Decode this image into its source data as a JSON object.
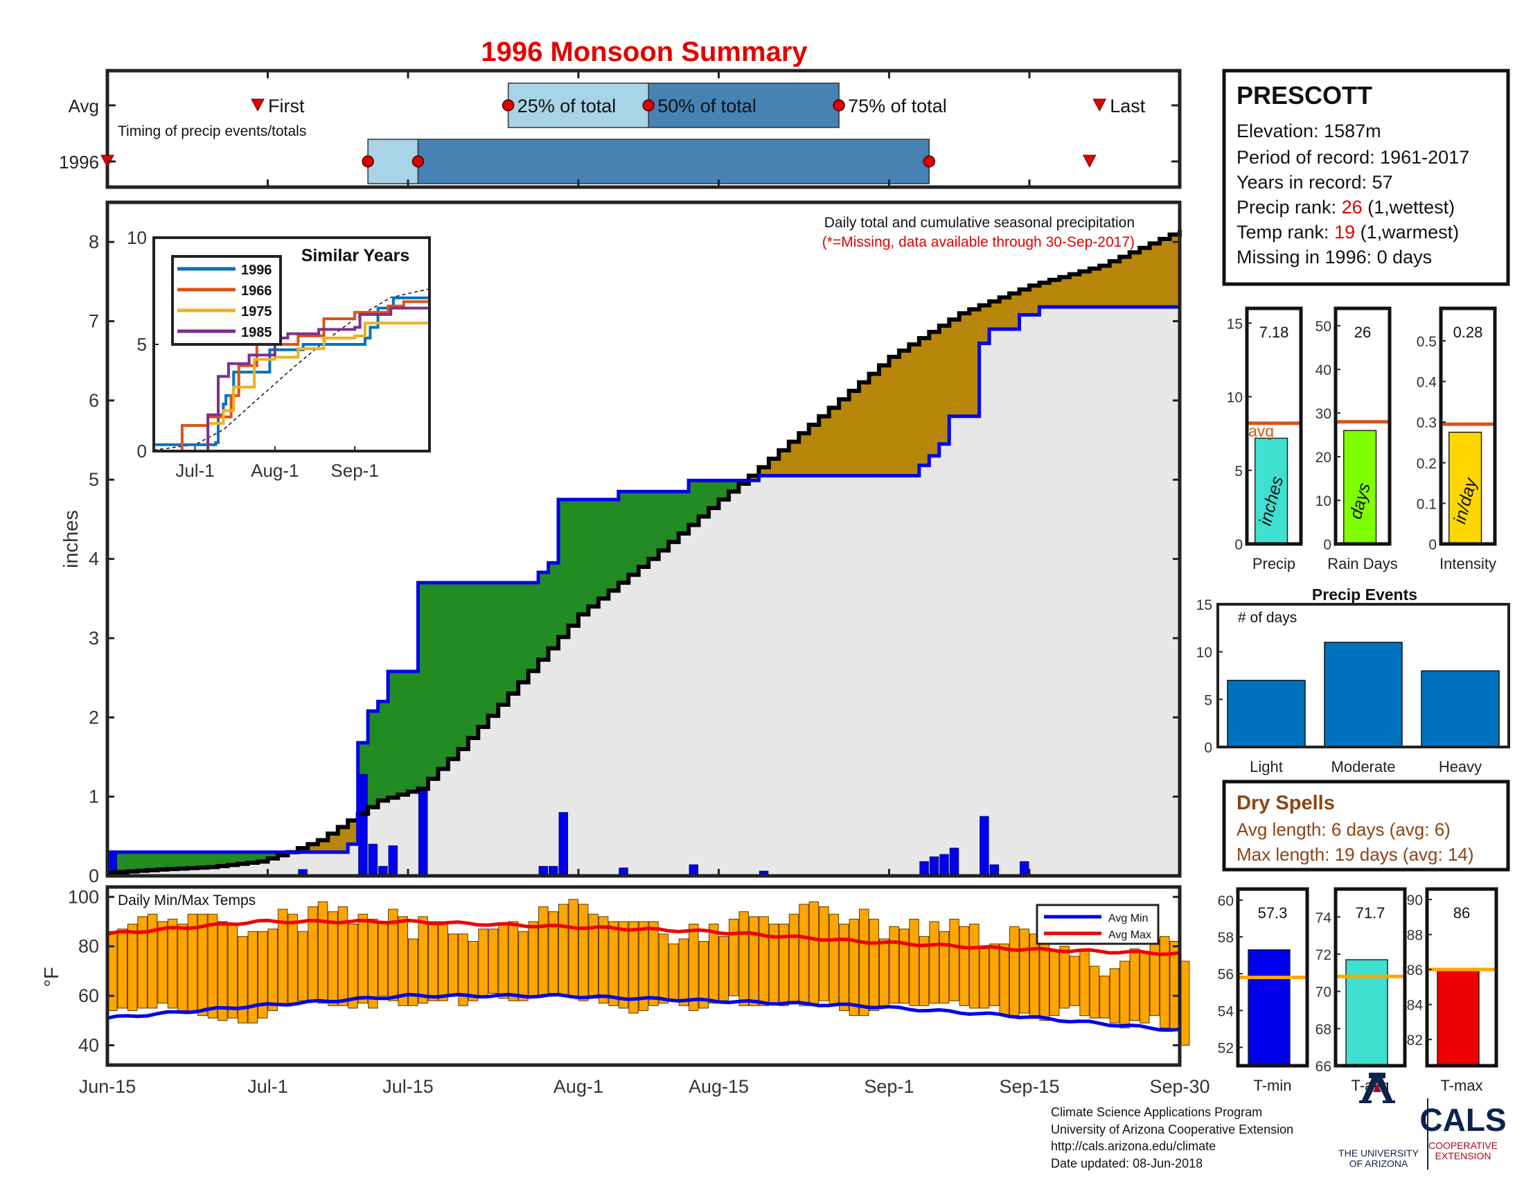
{
  "title": "1996 Monsoon Summary",
  "timing": {
    "avg_label": "Avg",
    "year_label": "1996",
    "subtitle": "Timing of precip events/totals",
    "first_label": "First",
    "p25_label": "25% of total",
    "p50_label": "50% of total",
    "p75_label": "75% of total",
    "last_label": "Last",
    "avg": {
      "first": "Jun-30",
      "p25": "Jul-25",
      "p50": "Aug-8",
      "p75": "Aug-27",
      "last": "Sep-22"
    },
    "year": {
      "first": "Jun-15",
      "p25": "Jul-11",
      "p50": "Jul-16",
      "p75": "Sep-5",
      "last": "Sep-21"
    },
    "colors": {
      "light": "#a9d3e6",
      "dark": "#4682b4",
      "marker": "#e00000"
    }
  },
  "station": {
    "name": "PRESCOTT",
    "elevation": "Elevation: 1587m",
    "period": "Period of record: 1961-2017",
    "years": "Years in record: 57",
    "precip_rank_prefix": "Precip rank: ",
    "precip_rank": "26",
    "precip_rank_suffix": " (1,wettest)",
    "temp_rank_prefix": "Temp rank: ",
    "temp_rank": "19",
    "temp_rank_suffix": " (1,warmest)",
    "missing": "Missing in 1996: 0 days"
  },
  "main_chart": {
    "note": "Daily total and cumulative seasonal precipitation",
    "missing_note": "(*=Missing, data available through 30-Sep-2017)",
    "ylabel": "inches",
    "ylim": [
      0,
      8.5
    ],
    "yticks": [
      0,
      1,
      2,
      3,
      4,
      5,
      6,
      7,
      8
    ],
    "xticks": [
      "Jun-15",
      "Jul-1",
      "Jul-15",
      "Aug-1",
      "Aug-15",
      "Sep-1",
      "Sep-15",
      "Sep-30"
    ],
    "colors": {
      "above": "#228b22",
      "below": "#b8860b",
      "fill": "#e8e7e7",
      "observed": "#0000ee",
      "average": "#000000",
      "daily": "#0000ee"
    },
    "observed_cumulative": [
      [
        "Jun-15",
        0.3
      ],
      [
        "Jul-9",
        0.4
      ],
      [
        "Jul-10",
        1.68
      ],
      [
        "Jul-11",
        2.08
      ],
      [
        "Jul-12",
        2.2
      ],
      [
        "Jul-13",
        2.58
      ],
      [
        "Jul-16",
        3.7
      ],
      [
        "Jul-28",
        3.83
      ],
      [
        "Jul-29",
        3.95
      ],
      [
        "Jul-30",
        4.75
      ],
      [
        "Aug-5",
        4.85
      ],
      [
        "Aug-12",
        4.99
      ],
      [
        "Aug-19",
        5.05
      ],
      [
        "Sep-4",
        5.18
      ],
      [
        "Sep-5",
        5.3
      ],
      [
        "Sep-6",
        5.45
      ],
      [
        "Sep-7",
        5.8
      ],
      [
        "Sep-10",
        6.72
      ],
      [
        "Sep-11",
        6.9
      ],
      [
        "Sep-14",
        7.08
      ],
      [
        "Sep-16",
        7.18
      ],
      [
        "Sep-30",
        7.18
      ]
    ],
    "average_cumulative": [
      [
        "Jun-15",
        0.04
      ],
      [
        "Jun-20",
        0.08
      ],
      [
        "Jun-25",
        0.11
      ],
      [
        "Jun-30",
        0.18
      ],
      [
        "Jul-3",
        0.3
      ],
      [
        "Jul-6",
        0.45
      ],
      [
        "Jul-9",
        0.7
      ],
      [
        "Jul-12",
        0.95
      ],
      [
        "Jul-16",
        1.1
      ],
      [
        "Jul-20",
        1.6
      ],
      [
        "Jul-25",
        2.3
      ],
      [
        "Aug-1",
        3.3
      ],
      [
        "Aug-8",
        4.0
      ],
      [
        "Aug-15",
        4.75
      ],
      [
        "Aug-18",
        5.05
      ],
      [
        "Aug-25",
        5.8
      ],
      [
        "Sep-1",
        6.55
      ],
      [
        "Sep-8",
        7.1
      ],
      [
        "Sep-15",
        7.45
      ],
      [
        "Sep-22",
        7.7
      ],
      [
        "Sep-30",
        8.15
      ]
    ],
    "daily_precip": [
      [
        "Jun-15",
        0.28
      ],
      [
        "Jul-4",
        0.08
      ],
      [
        "Jul-10",
        1.28
      ],
      [
        "Jul-11",
        0.4
      ],
      [
        "Jul-12",
        0.12
      ],
      [
        "Jul-13",
        0.38
      ],
      [
        "Jul-16",
        1.12
      ],
      [
        "Jul-28",
        0.12
      ],
      [
        "Jul-29",
        0.12
      ],
      [
        "Jul-30",
        0.8
      ],
      [
        "Aug-5",
        0.1
      ],
      [
        "Aug-12",
        0.14
      ],
      [
        "Aug-19",
        0.06
      ],
      [
        "Sep-4",
        0.18
      ],
      [
        "Sep-5",
        0.24
      ],
      [
        "Sep-6",
        0.27
      ],
      [
        "Sep-7",
        0.35
      ],
      [
        "Sep-10",
        0.75
      ],
      [
        "Sep-11",
        0.14
      ],
      [
        "Sep-14",
        0.18
      ]
    ]
  },
  "similar_years": {
    "title": "Similar Years",
    "ylim": [
      0,
      10
    ],
    "yticks": [
      0,
      5,
      10
    ],
    "xticks": [
      "Jul-1",
      "Aug-1",
      "Sep-1"
    ],
    "series": [
      {
        "name": "1996",
        "color": "#0072bd",
        "points": [
          [
            "Jun-15",
            0.3
          ],
          [
            "Jul-9",
            0.4
          ],
          [
            "Jul-10",
            1.7
          ],
          [
            "Jul-12",
            2.2
          ],
          [
            "Jul-13",
            2.6
          ],
          [
            "Jul-16",
            3.7
          ],
          [
            "Jul-30",
            4.75
          ],
          [
            "Aug-12",
            5.0
          ],
          [
            "Sep-5",
            5.3
          ],
          [
            "Sep-7",
            5.8
          ],
          [
            "Sep-10",
            6.7
          ],
          [
            "Sep-16",
            7.18
          ],
          [
            "Sep-30",
            7.18
          ]
        ]
      },
      {
        "name": "1966",
        "color": "#d95319",
        "points": [
          [
            "Jun-15",
            0.0
          ],
          [
            "Jun-25",
            0.0
          ],
          [
            "Jun-26",
            1.2
          ],
          [
            "Jul-5",
            1.2
          ],
          [
            "Jul-6",
            1.6
          ],
          [
            "Jul-15",
            2.6
          ],
          [
            "Jul-18",
            4.0
          ],
          [
            "Jul-25",
            5.0
          ],
          [
            "Aug-10",
            5.4
          ],
          [
            "Aug-20",
            6.2
          ],
          [
            "Sep-1",
            6.5
          ],
          [
            "Sep-10",
            6.5
          ],
          [
            "Sep-14",
            6.8
          ],
          [
            "Sep-20",
            7.0
          ],
          [
            "Sep-30",
            7.2
          ]
        ]
      },
      {
        "name": "1975",
        "color": "#edb120",
        "points": [
          [
            "Jun-15",
            0.0
          ],
          [
            "Jul-5",
            0.0
          ],
          [
            "Jul-6",
            1.3
          ],
          [
            "Jul-12",
            1.9
          ],
          [
            "Jul-16",
            3.0
          ],
          [
            "Jul-24",
            4.3
          ],
          [
            "Aug-1",
            4.4
          ],
          [
            "Aug-10",
            4.8
          ],
          [
            "Aug-20",
            5.3
          ],
          [
            "Sep-1",
            5.4
          ],
          [
            "Sep-5",
            6.0
          ],
          [
            "Sep-30",
            6.0
          ]
        ]
      },
      {
        "name": "1985",
        "color": "#7e2f8e",
        "points": [
          [
            "Jun-15",
            0.0
          ],
          [
            "Jul-5",
            0.0
          ],
          [
            "Jul-6",
            1.7
          ],
          [
            "Jul-10",
            3.5
          ],
          [
            "Jul-14",
            4.1
          ],
          [
            "Jul-22",
            4.5
          ],
          [
            "Aug-1",
            5.3
          ],
          [
            "Aug-6",
            5.5
          ],
          [
            "Aug-18",
            5.7
          ],
          [
            "Sep-1",
            5.8
          ],
          [
            "Sep-3",
            6.4
          ],
          [
            "Sep-15",
            6.7
          ],
          [
            "Sep-30",
            7.1
          ]
        ]
      }
    ],
    "average_points": [
      [
        "Jun-15",
        0.05
      ],
      [
        "Jul-1",
        0.3
      ],
      [
        "Jul-12",
        1.0
      ],
      [
        "Jul-25",
        2.4
      ],
      [
        "Aug-8",
        3.9
      ],
      [
        "Aug-20",
        5.1
      ],
      [
        "Sep-1",
        6.2
      ],
      [
        "Sep-15",
        7.2
      ],
      [
        "Sep-30",
        7.6
      ]
    ]
  },
  "bar_panels": [
    {
      "value": 7.18,
      "value_label": "7.18",
      "avg": 8.2,
      "avg_label": "avg",
      "ylim": [
        0,
        16
      ],
      "yticks": [
        0,
        5,
        10,
        15
      ],
      "color": "#40e0d0",
      "unit": "inches",
      "xlabel": "Precip"
    },
    {
      "value": 26,
      "value_label": "26",
      "avg": 28,
      "avg_label": "",
      "ylim": [
        0,
        54
      ],
      "yticks": [
        0,
        10,
        20,
        30,
        40,
        50
      ],
      "color": "#7fff00",
      "unit": "days",
      "xlabel": "Rain Days"
    },
    {
      "value": 0.275,
      "value_label": "0.28",
      "avg": 0.295,
      "avg_label": "",
      "ylim": [
        0,
        0.58
      ],
      "yticks": [
        0.1,
        0.2,
        0.3,
        0.4,
        0.5
      ],
      "ytick_labels": [
        "0.1",
        "0.2",
        "0.3",
        "0.4",
        "0.5"
      ],
      "zero_label": "0",
      "color": "#ffd700",
      "unit": "in/day",
      "xlabel": "Intensity"
    }
  ],
  "precip_events": {
    "title": "Precip Events",
    "ylabel": "# of days",
    "ylim": [
      0,
      15
    ],
    "yticks": [
      0,
      5,
      10,
      15
    ],
    "categories": [
      "Light",
      "Moderate",
      "Heavy"
    ],
    "values": [
      7,
      11,
      8
    ],
    "color": "#0072bd"
  },
  "dry_spells": {
    "title": "Dry Spells",
    "avg_length": "Avg length: 6 days (avg: 6)",
    "max_length": "Max length: 19 days (avg: 14)",
    "color": "#8b4513"
  },
  "temps": {
    "label": "Daily Min/Max Temps",
    "ylabel": "°F",
    "ylim": [
      32,
      104
    ],
    "yticks": [
      40,
      60,
      80,
      100
    ],
    "bar_color": "#ffa500",
    "legend_min": "Avg Min",
    "legend_max": "Avg Max",
    "min_color": "#0000ee",
    "max_color": "#ee0000",
    "avg_max": [
      [
        0,
        85
      ],
      [
        15,
        90
      ],
      [
        30,
        90
      ],
      [
        45,
        88
      ],
      [
        60,
        86
      ],
      [
        75,
        82
      ],
      [
        90,
        79
      ],
      [
        107,
        77
      ]
    ],
    "avg_min": [
      [
        0,
        51
      ],
      [
        15,
        56
      ],
      [
        30,
        60
      ],
      [
        45,
        60
      ],
      [
        60,
        58
      ],
      [
        75,
        56
      ],
      [
        90,
        52
      ],
      [
        107,
        46
      ]
    ],
    "daily_max": [
      86,
      87,
      89,
      92,
      93,
      90,
      91,
      89,
      93,
      93,
      93,
      90,
      89,
      84,
      86,
      86,
      87,
      95,
      93,
      86,
      96,
      98,
      94,
      96,
      89,
      93,
      91,
      90,
      95,
      92,
      83,
      92,
      90,
      90,
      85,
      85,
      82,
      87,
      87,
      89,
      90,
      86,
      90,
      96,
      94,
      97,
      99,
      97,
      93,
      92,
      90,
      90,
      90,
      90,
      90,
      85,
      81,
      83,
      89,
      82,
      89,
      84,
      91,
      94,
      92,
      92,
      89,
      89,
      93,
      97,
      98,
      96,
      93,
      89,
      91,
      95,
      91,
      83,
      88,
      87,
      91,
      84,
      90,
      86,
      91,
      88,
      89,
      79,
      81,
      81,
      88,
      87,
      85,
      86,
      78,
      80,
      76,
      78,
      72,
      68,
      71,
      74,
      79,
      78,
      83,
      84,
      82,
      74
    ],
    "daily_min": [
      54,
      55,
      54,
      55,
      55,
      57,
      55,
      54,
      53,
      52,
      51,
      50,
      51,
      49,
      49,
      51,
      54,
      56,
      57,
      58,
      58,
      57,
      56,
      56,
      55,
      57,
      55,
      60,
      58,
      56,
      56,
      57,
      58,
      58,
      60,
      56,
      58,
      60,
      61,
      59,
      58,
      58,
      60,
      60,
      61,
      60,
      60,
      58,
      59,
      57,
      56,
      55,
      53,
      54,
      56,
      57,
      58,
      56,
      54,
      55,
      57,
      58,
      60,
      56,
      56,
      56,
      57,
      56,
      57,
      56,
      56,
      58,
      56,
      54,
      52,
      52,
      54,
      56,
      57,
      57,
      56,
      56,
      57,
      57,
      58,
      56,
      55,
      55,
      56,
      52,
      52,
      53,
      52,
      50,
      52,
      55,
      56,
      52,
      51,
      51,
      49,
      47,
      50,
      49,
      52,
      47,
      46,
      40
    ]
  },
  "temp_panels": [
    {
      "value": 57.3,
      "value_label": "57.3",
      "avg": 55.8,
      "ylim": [
        51,
        60.6
      ],
      "yticks": [
        52,
        54,
        56,
        58,
        60
      ],
      "color": "#0000ee",
      "xlabel": "T-min"
    },
    {
      "value": 71.7,
      "value_label": "71.7",
      "avg": 70.8,
      "ylim": [
        66,
        75.5
      ],
      "yticks": [
        66,
        68,
        70,
        72,
        74
      ],
      "color": "#40e0d0",
      "xlabel": "T-avg"
    },
    {
      "value": 86,
      "value_label": "86",
      "avg": 86,
      "ylim": [
        80.5,
        90.6
      ],
      "yticks": [
        82,
        84,
        86,
        88,
        90
      ],
      "color": "#ee0000",
      "xlabel": "T-max"
    }
  ],
  "footer": {
    "line1": "Climate Science Applications Program",
    "line2": "University of Arizona Cooperative Extension",
    "line3": "http://cals.arizona.edu/climate",
    "line4": " Date updated: 08-Jun-2018",
    "ua_line1": "THE UNIVERSITY",
    "ua_line2": "OF ARIZONA",
    "cals": "CALS",
    "cals_line1": "COOPERATIVE",
    "cals_line2": "EXTENSION",
    "logo_colors": {
      "navy": "#0c234b",
      "red": "#ab0520"
    }
  }
}
